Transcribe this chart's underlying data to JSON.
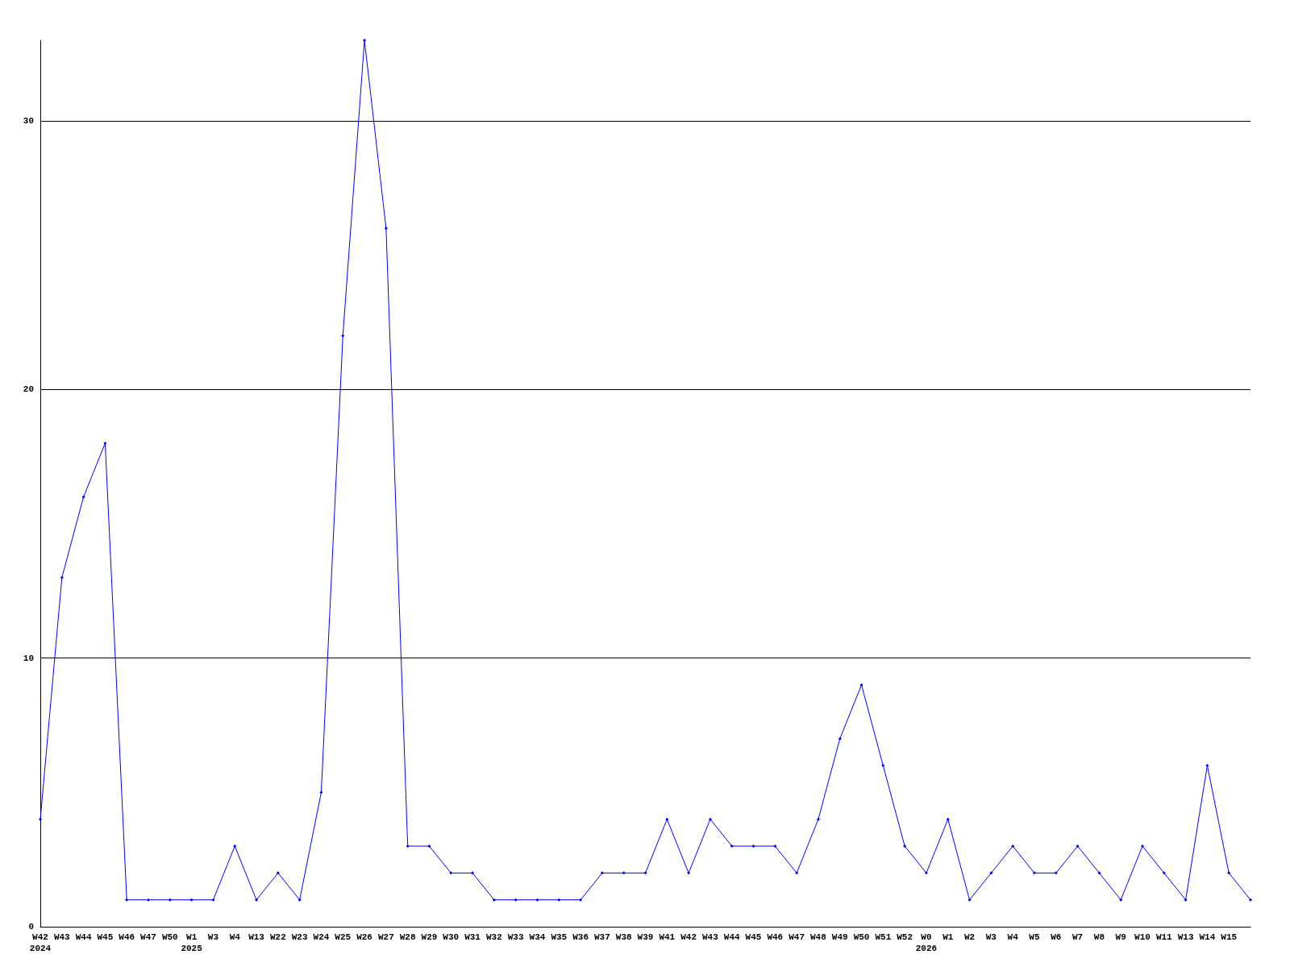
{
  "chart_data": {
    "type": "line",
    "categories": [
      "W42\n2024",
      "W43",
      "W44",
      "W45",
      "W46",
      "W47",
      "W50",
      "W1\n2025",
      "W3",
      "W4",
      "W13",
      "W22",
      "W23",
      "W24",
      "W25",
      "W26",
      "W27",
      "W28",
      "W29",
      "W30",
      "W31",
      "W32",
      "W33",
      "W34",
      "W35",
      "W36",
      "W37",
      "W38",
      "W39",
      "W41",
      "W42",
      "W43",
      "W44",
      "W45",
      "W46",
      "W47",
      "W48",
      "W49",
      "W50",
      "W51",
      "W52",
      "W0\n2026",
      "W1",
      "W2",
      "W3",
      "W4",
      "W5",
      "W6",
      "W7",
      "W8",
      "W9",
      "W10",
      "W11",
      "W13",
      "W14",
      "W15",
      null
    ],
    "series": [
      {
        "color": "#0000ff",
        "values": [
          4,
          13,
          16,
          18,
          1,
          1,
          1,
          1,
          1,
          3,
          1,
          2,
          1,
          5,
          22,
          33,
          26,
          3,
          3,
          2,
          2,
          1,
          1,
          1,
          1,
          1,
          2,
          2,
          2,
          4,
          2,
          4,
          3,
          3,
          3,
          2,
          4,
          7,
          9,
          6,
          3,
          2,
          4,
          1,
          2,
          3,
          2,
          2,
          3,
          2,
          1,
          3,
          2,
          1,
          6,
          2,
          1
        ]
      }
    ],
    "ylim": [
      0,
      33
    ],
    "yticks": [
      0,
      10,
      20,
      30
    ],
    "grid": "y",
    "marker": "diamond",
    "line_style": "solid"
  }
}
